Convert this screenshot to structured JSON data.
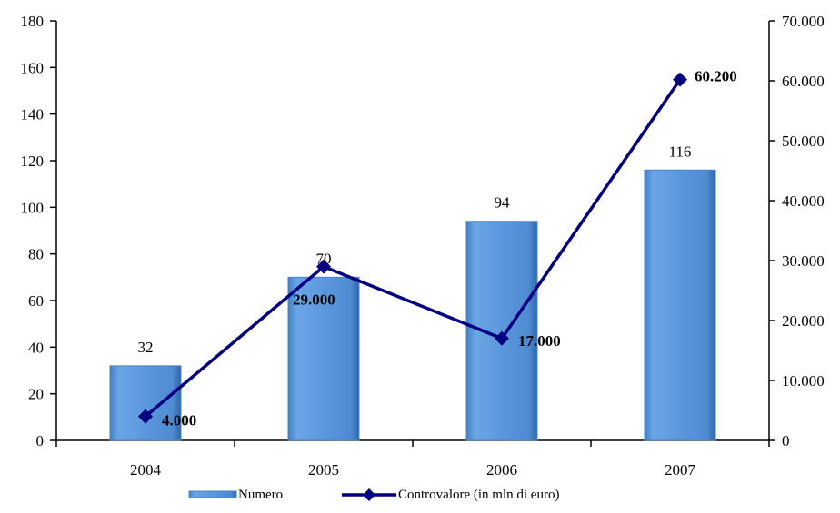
{
  "chart_data": {
    "type": "bar",
    "title": "",
    "xlabel": "",
    "ylabel": "",
    "categories": [
      "2004",
      "2005",
      "2006",
      "2007"
    ],
    "series": [
      {
        "name": "Numero",
        "type": "bar",
        "axis": "left",
        "values": [
          32,
          70,
          94,
          116
        ],
        "labels": [
          "32",
          "70",
          "94",
          "116"
        ],
        "color": "#5b9bd5"
      },
      {
        "name": "Controvalore  (in mln  di euro)",
        "type": "line",
        "axis": "right",
        "values": [
          4000,
          29000,
          17000,
          60200
        ],
        "labels": [
          "4.000",
          "29.000",
          "17.000",
          "60.200"
        ],
        "color": "#000080",
        "marker": "diamond"
      }
    ],
    "y_left": {
      "ylim": [
        0,
        180
      ],
      "ticks": [
        "0",
        "20",
        "40",
        "60",
        "80",
        "100",
        "120",
        "140",
        "160",
        "180"
      ]
    },
    "y_right": {
      "ylim": [
        0,
        70000
      ],
      "ticks": [
        "0",
        "10.000",
        "20.000",
        "30.000",
        "40.000",
        "50.000",
        "60.000",
        "70.000"
      ]
    },
    "grid": false,
    "legend_position": "bottom"
  }
}
